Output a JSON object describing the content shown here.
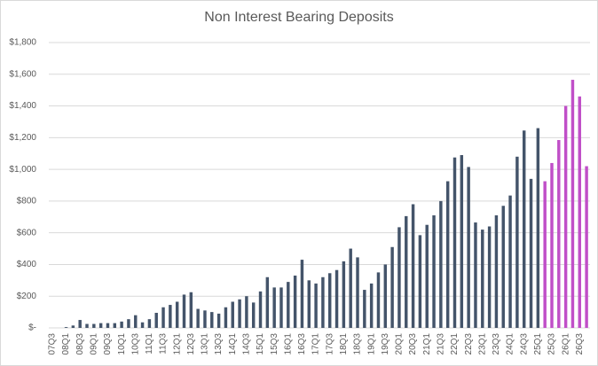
{
  "chart_data": {
    "type": "bar",
    "title": "Non Interest Bearing Deposits",
    "categories": [
      "07Q3",
      null,
      "08Q1",
      null,
      "08Q3",
      null,
      "09Q1",
      null,
      "09Q3",
      null,
      "10Q1",
      null,
      "10Q3",
      null,
      "11Q1",
      null,
      "11Q3",
      null,
      "12Q1",
      null,
      "12Q3",
      null,
      "13Q1",
      null,
      "13Q3",
      null,
      "14Q1",
      null,
      "14Q3",
      null,
      "15Q1",
      null,
      "15Q3",
      null,
      "16Q1",
      null,
      "16Q3",
      null,
      "17Q1",
      null,
      "17Q3",
      null,
      "18Q1",
      null,
      "18Q3",
      null,
      "19Q1",
      null,
      "19Q3",
      null,
      "20Q1",
      null,
      "20Q3",
      null,
      "21Q1",
      null,
      "21Q3",
      null,
      "22Q1",
      null,
      "22Q3",
      null,
      "23Q1",
      null,
      "23Q3",
      null,
      "24Q1",
      null,
      "24Q3",
      null,
      "25Q1",
      null,
      "25Q3",
      null,
      "26Q1",
      null,
      "26Q3",
      null
    ],
    "values": [
      0,
      0,
      5,
      15,
      50,
      25,
      25,
      30,
      30,
      30,
      40,
      55,
      80,
      35,
      55,
      95,
      130,
      145,
      165,
      210,
      225,
      120,
      110,
      100,
      90,
      130,
      165,
      180,
      200,
      160,
      230,
      320,
      255,
      255,
      290,
      330,
      430,
      300,
      280,
      320,
      345,
      365,
      420,
      500,
      445,
      240,
      280,
      350,
      400,
      510,
      635,
      705,
      780,
      585,
      650,
      710,
      800,
      925,
      1075,
      1090,
      1015,
      665,
      620,
      640,
      710,
      770,
      835,
      1080,
      1245,
      940,
      1260,
      925,
      1040,
      1185,
      1400,
      1565,
      1460,
      1020
    ],
    "colors": [
      "#44546a",
      "#44546a",
      "#44546a",
      "#44546a",
      "#44546a",
      "#44546a",
      "#44546a",
      "#44546a",
      "#44546a",
      "#44546a",
      "#44546a",
      "#44546a",
      "#44546a",
      "#44546a",
      "#44546a",
      "#44546a",
      "#44546a",
      "#44546a",
      "#44546a",
      "#44546a",
      "#44546a",
      "#44546a",
      "#44546a",
      "#44546a",
      "#44546a",
      "#44546a",
      "#44546a",
      "#44546a",
      "#44546a",
      "#44546a",
      "#44546a",
      "#44546a",
      "#44546a",
      "#44546a",
      "#44546a",
      "#44546a",
      "#44546a",
      "#44546a",
      "#44546a",
      "#44546a",
      "#44546a",
      "#44546a",
      "#44546a",
      "#44546a",
      "#44546a",
      "#44546a",
      "#44546a",
      "#44546a",
      "#44546a",
      "#44546a",
      "#44546a",
      "#44546a",
      "#44546a",
      "#44546a",
      "#44546a",
      "#44546a",
      "#44546a",
      "#44546a",
      "#44546a",
      "#44546a",
      "#44546a",
      "#44546a",
      "#44546a",
      "#44546a",
      "#44546a",
      "#44546a",
      "#44546a",
      "#44546a",
      "#44546a",
      "#44546a",
      "#44546a",
      "#c04fc8",
      "#c04fc8",
      "#c04fc8",
      "#c04fc8",
      "#c04fc8",
      "#c04fc8",
      "#c04fc8"
    ],
    "ylim": [
      0,
      1800
    ],
    "yticks": [
      {
        "value": 0,
        "label": "$-"
      },
      {
        "value": 200,
        "label": "$200"
      },
      {
        "value": 400,
        "label": "$400"
      },
      {
        "value": 600,
        "label": "$600"
      },
      {
        "value": 800,
        "label": "$800"
      },
      {
        "value": 1000,
        "label": "$1,000"
      },
      {
        "value": 1200,
        "label": "$1,200"
      },
      {
        "value": 1400,
        "label": "$1,400"
      },
      {
        "value": 1600,
        "label": "$1,600"
      },
      {
        "value": 1800,
        "label": "$1,800"
      }
    ],
    "grid": true
  }
}
